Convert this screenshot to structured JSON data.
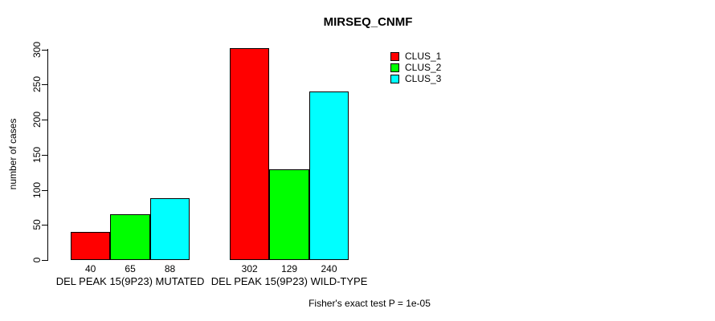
{
  "title": "MIRSEQ_CNMF",
  "caption": "Fisher's exact test P = 1e-05",
  "colors": {
    "clus_1": "#FF0000",
    "clus_2": "#00FF00",
    "clus_3": "#00FFFF",
    "axis": "#000000",
    "background": "#FFFFFF"
  },
  "chart_data": {
    "type": "bar",
    "title": "MIRSEQ_CNMF",
    "xlabel": "",
    "ylabel": "number of cases",
    "ylim": [
      0,
      300
    ],
    "yticks": [
      0,
      50,
      100,
      150,
      200,
      250,
      300
    ],
    "grid": false,
    "legend_position": "right",
    "categories": [
      "DEL PEAK 15(9P23) MUTATED",
      "DEL PEAK 15(9P23) WILD-TYPE"
    ],
    "series": [
      {
        "name": "CLUS_1",
        "color": "#FF0000",
        "values": [
          40,
          302
        ]
      },
      {
        "name": "CLUS_2",
        "color": "#00FF00",
        "values": [
          65,
          129
        ]
      },
      {
        "name": "CLUS_3",
        "color": "#00FFFF",
        "values": [
          88,
          240
        ]
      }
    ],
    "bar_value_labels": [
      [
        40,
        65,
        88
      ],
      [
        302,
        129,
        240
      ]
    ],
    "annotation": "Fisher's exact test P = 1e-05"
  }
}
